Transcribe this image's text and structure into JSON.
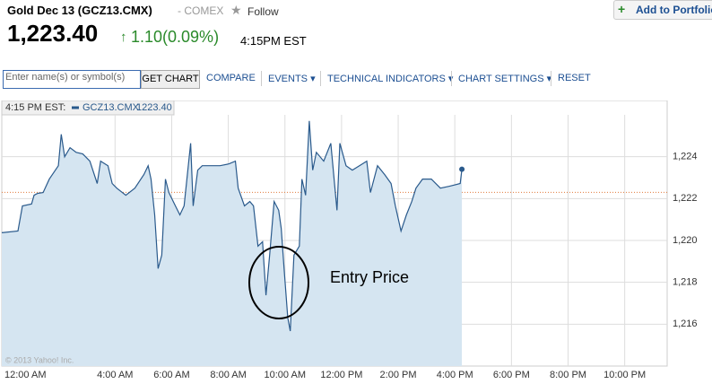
{
  "header": {
    "title": "Gold Dec 13 (GCZ13.CMX)",
    "exchange": "- COMEX",
    "follow": "Follow",
    "price": "1,223.40",
    "change": "1.10(0.09%)",
    "time": "4:15PM EST",
    "add_button": "Add to Portfolio"
  },
  "toolbar": {
    "input_placeholder": "Enter name(s) or symbol(s)",
    "get_chart": "GET CHART",
    "compare": "COMPARE",
    "events": "EVENTS",
    "technical_indicators": "TECHNICAL INDICATORS",
    "chart_settings": "CHART SETTINGS",
    "reset": "RESET"
  },
  "chart_data": {
    "type": "line",
    "legend_time": "4:15 PM EST:",
    "legend_value": "1223.40",
    "annotation": "Entry Price",
    "copyright": "© 2013 Yahoo! Inc.",
    "reference_line": 1222.3,
    "reference_color": "#e07a3c",
    "x": [
      0.0,
      0.57,
      0.73,
      1.05,
      1.14,
      1.27,
      1.46,
      1.68,
      2.0,
      2.1,
      2.22,
      2.41,
      2.63,
      2.86,
      3.11,
      3.37,
      3.49,
      3.75,
      3.9,
      4.06,
      4.38,
      4.7,
      5.02,
      5.17,
      5.27,
      5.4,
      5.52,
      5.65,
      5.78,
      5.9,
      6.13,
      6.29,
      6.44,
      6.67,
      6.76,
      6.92,
      7.08,
      7.4,
      7.71,
      8.03,
      8.25,
      8.35,
      8.57,
      8.76,
      8.89,
      9.05,
      9.21,
      9.33,
      9.46,
      9.62,
      9.78,
      9.87,
      9.97,
      10.1,
      10.19,
      10.32,
      10.51,
      10.6,
      10.73,
      10.86,
      10.98,
      11.11,
      11.37,
      11.62,
      11.84,
      11.94,
      12.16,
      12.38,
      12.63,
      12.89,
      13.02,
      13.27,
      13.52,
      13.75,
      13.9,
      14.1,
      14.29,
      14.48,
      14.63,
      14.86,
      15.17,
      15.49,
      15.81,
      16.19,
      16.25
    ],
    "series": [
      {
        "name": "GCZ13.CMX",
        "color": "#2a5a8c",
        "fill": "#d5e5f1",
        "values": [
          1220.37,
          1220.45,
          1221.65,
          1221.74,
          1222.16,
          1222.25,
          1222.29,
          1222.93,
          1223.57,
          1225.07,
          1224.0,
          1224.43,
          1224.21,
          1224.13,
          1223.79,
          1222.72,
          1223.79,
          1223.57,
          1222.72,
          1222.5,
          1222.16,
          1222.5,
          1223.15,
          1223.57,
          1222.93,
          1221.22,
          1218.66,
          1219.3,
          1222.93,
          1222.29,
          1221.65,
          1221.22,
          1221.65,
          1224.64,
          1221.65,
          1223.36,
          1223.57,
          1223.57,
          1223.57,
          1223.66,
          1223.79,
          1222.5,
          1221.65,
          1221.86,
          1221.65,
          1219.73,
          1219.94,
          1217.38,
          1219.3,
          1221.86,
          1221.44,
          1220.58,
          1218.66,
          1216.31,
          1215.67,
          1219.3,
          1219.73,
          1222.93,
          1222.16,
          1225.71,
          1223.36,
          1224.21,
          1223.79,
          1224.64,
          1221.44,
          1224.64,
          1223.57,
          1223.36,
          1223.57,
          1223.79,
          1222.29,
          1223.57,
          1223.15,
          1222.72,
          1221.65,
          1220.45,
          1221.22,
          1221.86,
          1222.5,
          1222.93,
          1222.93,
          1222.5,
          1222.59,
          1222.72,
          1223.4
        ]
      }
    ],
    "xlim": [
      0,
      23.5
    ],
    "xticks": [
      {
        "value": 0,
        "label": "12:00 AM"
      },
      {
        "value": 4,
        "label": "4:00 AM"
      },
      {
        "value": 6,
        "label": "6:00 AM"
      },
      {
        "value": 8,
        "label": "8:00 AM"
      },
      {
        "value": 10,
        "label": "10:00 AM"
      },
      {
        "value": 12,
        "label": "12:00 PM"
      },
      {
        "value": 14,
        "label": "2:00 PM"
      },
      {
        "value": 16,
        "label": "4:00 PM"
      },
      {
        "value": 18,
        "label": "6:00 PM"
      },
      {
        "value": 20,
        "label": "8:00 PM"
      },
      {
        "value": 22,
        "label": "10:00 PM"
      }
    ],
    "ylim": [
      1214,
      1226
    ],
    "yticks": [
      {
        "value": 1216,
        "label": "1,216"
      },
      {
        "value": 1218,
        "label": "1,218"
      },
      {
        "value": 1220,
        "label": "1,220"
      },
      {
        "value": 1222,
        "label": "1,222"
      },
      {
        "value": 1224,
        "label": "1,224"
      }
    ],
    "grid": true
  }
}
